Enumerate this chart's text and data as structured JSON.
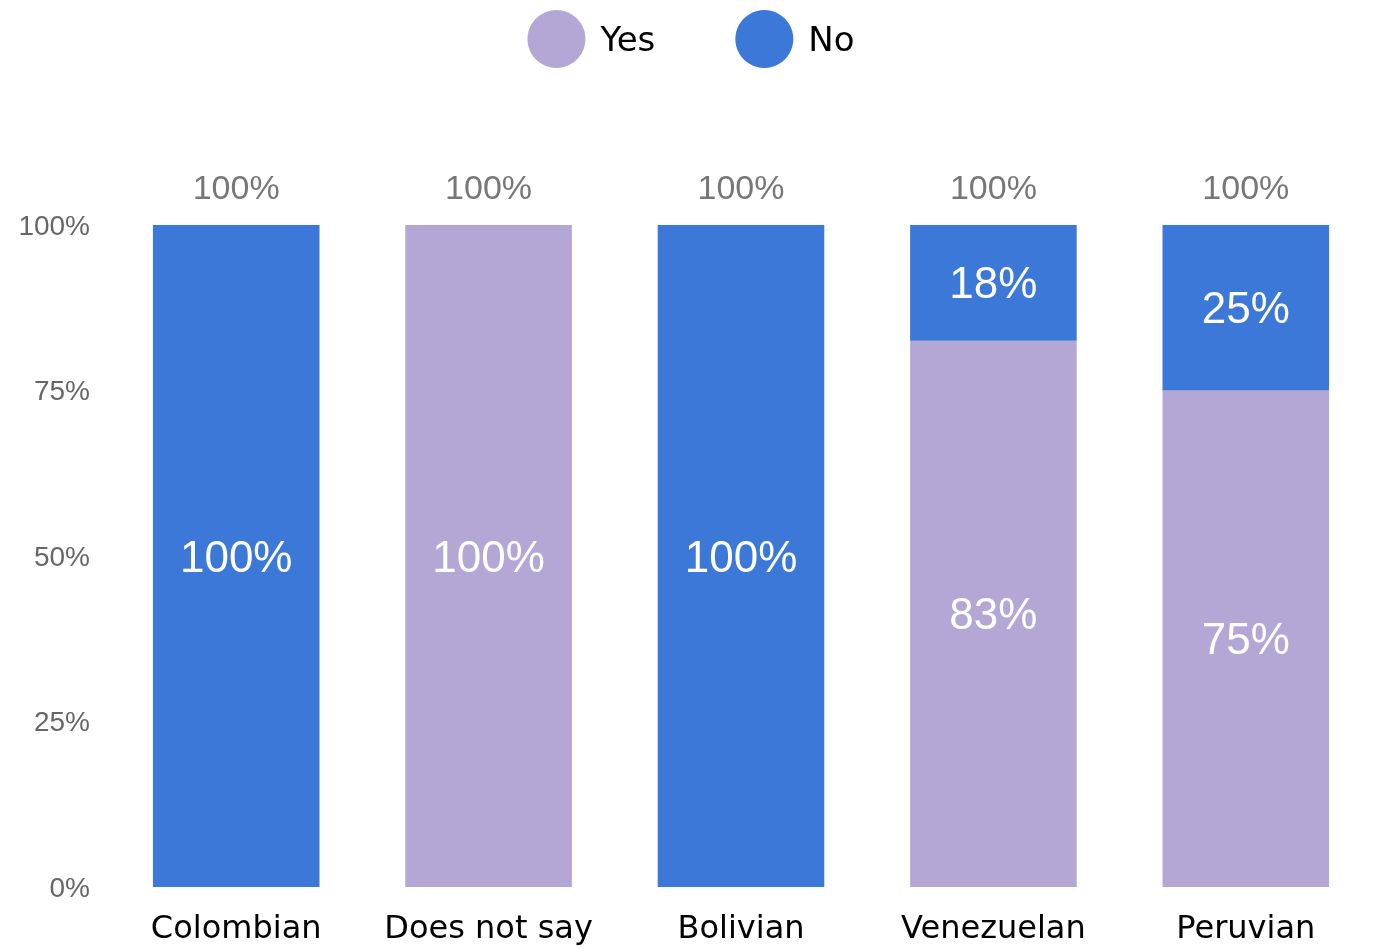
{
  "chart_data": {
    "type": "bar",
    "stacked": true,
    "categories": [
      "Colombian",
      "Does not say",
      "Bolivian",
      "Venezuelan",
      "Peruvian"
    ],
    "series": [
      {
        "name": "Yes",
        "color": "#b4a7d6",
        "values": [
          0,
          100,
          0,
          82.5,
          75
        ],
        "value_labels": [
          null,
          "100%",
          null,
          "83%",
          "75%"
        ]
      },
      {
        "name": "No",
        "color": "#3c78d8",
        "values": [
          100,
          0,
          100,
          17.5,
          25
        ],
        "value_labels": [
          "100%",
          null,
          "100%",
          "18%",
          "25%"
        ]
      }
    ],
    "totals": [
      "100%",
      "100%",
      "100%",
      "100%",
      "100%"
    ],
    "ylim": [
      0,
      100
    ],
    "yticks": [
      {
        "value": 0,
        "label": "0%"
      },
      {
        "value": 25,
        "label": "25%"
      },
      {
        "value": 50,
        "label": "50%"
      },
      {
        "value": 75,
        "label": "75%"
      },
      {
        "value": 100,
        "label": "100%"
      }
    ],
    "grid": false,
    "legend": "top"
  }
}
